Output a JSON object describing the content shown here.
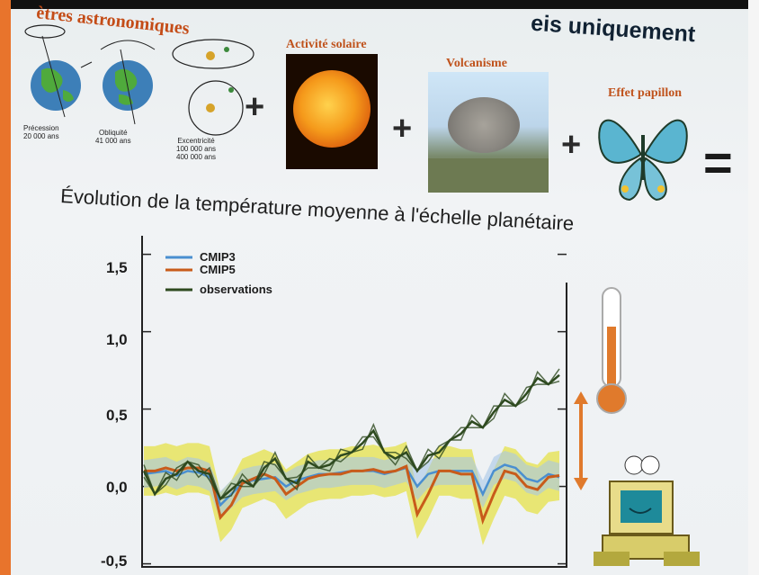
{
  "header": {
    "left_title": "ètres astronomiques",
    "right_title": "eis uniquement"
  },
  "factors": {
    "solar": "Activité solaire",
    "volcanism": "Volcanisme",
    "butterfly": "Effet papillon",
    "plus": "+",
    "equals": "="
  },
  "astronomy": {
    "precession": [
      "Précession",
      "20 000 ans"
    ],
    "obliquity": [
      "Obliquité",
      "41 000 ans"
    ],
    "eccentricity": [
      "Excentricité",
      "100 000 ans",
      "400 000 ans"
    ]
  },
  "chart_title": "Évolution de la température moyenne à l'échelle planétaire",
  "chart_data": {
    "type": "line",
    "yticks": [
      "1,5",
      "1,0",
      "0,5",
      "0,0",
      "-0,5"
    ],
    "ylim": [
      -0.5,
      1.6
    ],
    "series": [
      {
        "name": "CMIP3",
        "color": "#4a8fd0",
        "values": [
          0.08,
          0.09,
          0.1,
          0.07,
          0.1,
          0.09,
          0.06,
          -0.12,
          -0.05,
          0.02,
          0.04,
          0.05,
          0.06,
          0.0,
          0.04,
          0.06,
          0.08,
          0.08,
          0.09,
          0.1,
          0.1,
          0.1,
          0.08,
          0.1,
          0.12,
          0.0,
          0.08,
          0.1,
          0.1,
          0.1,
          0.1,
          -0.05,
          0.1,
          0.14,
          0.12,
          0.05,
          0.03,
          0.08,
          0.06
        ]
      },
      {
        "name": "CMIP5",
        "color": "#c85b1a",
        "values": [
          0.1,
          0.1,
          0.12,
          0.1,
          0.12,
          0.12,
          0.1,
          -0.2,
          -0.12,
          0.02,
          0.05,
          0.08,
          0.05,
          -0.05,
          0.0,
          0.05,
          0.07,
          0.08,
          0.08,
          0.1,
          0.1,
          0.11,
          0.09,
          0.1,
          0.13,
          -0.18,
          -0.05,
          0.1,
          0.1,
          0.08,
          0.08,
          -0.22,
          -0.05,
          0.1,
          0.08,
          0.0,
          -0.02,
          0.06,
          0.07
        ]
      },
      {
        "name": "observations",
        "color": "#2e4a1f",
        "values": [
          0.1,
          -0.05,
          0.05,
          0.08,
          0.16,
          0.1,
          0.08,
          -0.08,
          -0.02,
          0.04,
          0.0,
          0.12,
          0.18,
          0.05,
          0.02,
          0.16,
          0.12,
          0.14,
          0.2,
          0.22,
          0.28,
          0.36,
          0.22,
          0.18,
          0.22,
          0.1,
          0.2,
          0.22,
          0.3,
          0.34,
          0.42,
          0.38,
          0.48,
          0.56,
          0.52,
          0.6,
          0.7,
          0.66,
          0.72
        ]
      }
    ]
  },
  "colors": {
    "accent_orange": "#e8742c",
    "title_orange": "#c0531d"
  }
}
